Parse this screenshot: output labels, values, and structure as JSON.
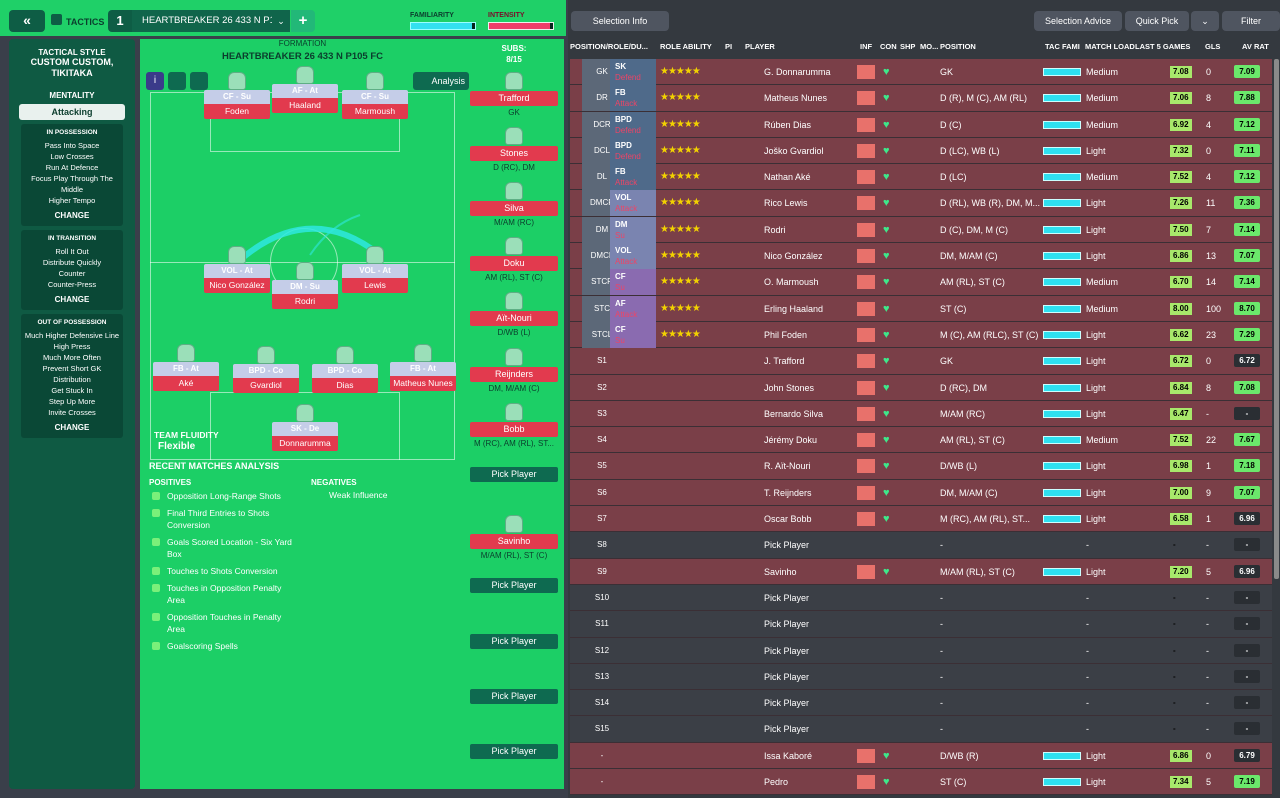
{
  "topbar": {
    "collapse": "«",
    "tactics_label": "TACTICS",
    "tactic_number": "1",
    "tactic_name": "HEARTBREAKER 26 433 N P1...",
    "dropdown": "⌄",
    "add": "+",
    "familiarity_label": "FAMILIARITY",
    "familiarity_value": 0.95,
    "intensity_label": "INTENSITY",
    "intensity_value": 0.95
  },
  "left": {
    "style_title": "TACTICAL STYLE",
    "style_name": "CUSTOM CUSTOM, TIKITAKA",
    "mentality_title": "MENTALITY",
    "mentality_value": "Attacking",
    "in_possession": {
      "title": "IN POSSESSION",
      "items": [
        "Pass Into Space",
        "Low Crosses",
        "Run At Defence",
        "Focus Play Through The Middle",
        "Higher Tempo"
      ],
      "change": "CHANGE"
    },
    "in_transition": {
      "title": "IN TRANSITION",
      "items": [
        "Roll It Out",
        "Distribute Quickly",
        "Counter",
        "Counter-Press"
      ],
      "change": "CHANGE"
    },
    "out_of_possession": {
      "title": "OUT OF POSSESSION",
      "items": [
        "Much Higher Defensive Line",
        "High Press",
        "Much More Often",
        "Prevent Short GK Distribution",
        "Get Stuck In",
        "Step Up More",
        "Invite Crosses"
      ],
      "change": "CHANGE"
    }
  },
  "pitch": {
    "formation_label": "FORMATION",
    "formation_name": "HEARTBREAKER 26 433 N P105 FC",
    "analysis": "Analysis",
    "team_fluidity_label": "TEAM FLUIDITY",
    "team_fluidity_value": "Flexible",
    "players": [
      {
        "role": "CF - Su",
        "name": "Foden"
      },
      {
        "role": "AF - At",
        "name": "Haaland"
      },
      {
        "role": "CF - Su",
        "name": "Marmoush"
      },
      {
        "role": "VOL - At",
        "name": "Nico González"
      },
      {
        "role": "DM - Su",
        "name": "Rodri"
      },
      {
        "role": "VOL - At",
        "name": "Lewis"
      },
      {
        "role": "FB - At",
        "name": "Aké"
      },
      {
        "role": "BPD - Co",
        "name": "Gvardiol"
      },
      {
        "role": "BPD - Co",
        "name": "Dias"
      },
      {
        "role": "FB - At",
        "name": "Matheus Nunes"
      },
      {
        "role": "SK - De",
        "name": "Donnarumma"
      }
    ]
  },
  "subs": {
    "title": "SUBS:",
    "count": "8/15",
    "items": [
      {
        "name": "Trafford",
        "pos": "GK"
      },
      {
        "name": "Stones",
        "pos": "D (RC), DM"
      },
      {
        "name": "Silva",
        "pos": "M/AM (RC)"
      },
      {
        "name": "Doku",
        "pos": "AM (RL), ST (C)"
      },
      {
        "name": "Aït-Nouri",
        "pos": "D/WB (L)"
      },
      {
        "name": "Reijnders",
        "pos": "DM, M/AM (C)"
      },
      {
        "name": "Bobb",
        "pos": "M (RC), AM (RL), ST..."
      },
      {
        "name": "Pick Player",
        "pos": ""
      },
      {
        "name": "Savinho",
        "pos": "M/AM (RL), ST (C)"
      },
      {
        "name": "Pick Player",
        "pos": ""
      },
      {
        "name": "Pick Player",
        "pos": ""
      },
      {
        "name": "Pick Player",
        "pos": ""
      },
      {
        "name": "Pick Player",
        "pos": ""
      }
    ]
  },
  "analysis": {
    "title": "RECENT MATCHES ANALYSIS",
    "positives_title": "POSITIVES",
    "negatives_title": "NEGATIVES",
    "positives": [
      "Opposition Long-Range Shots",
      "Final Third Entries to Shots Conversion",
      "Goals Scored Location - Six Yard Box",
      "Touches to Shots Conversion",
      "Touches in Opposition Penalty Area",
      "Opposition Touches in Penalty Area",
      "Goalscoring Spells"
    ],
    "negatives": [
      "Weak Influence"
    ]
  },
  "right": {
    "selection_info": "Selection Info",
    "selection_advice": "Selection Advice",
    "quick_pick": "Quick Pick",
    "filter": "Filter",
    "headers": [
      "POSITION/ROLE/DU...",
      "ROLE ABILITY",
      "PI",
      "PLAYER",
      "INF",
      "CON",
      "SHP",
      "MO...",
      "POSITION",
      "TAC FAMI",
      "MATCH LOAD",
      "LAST 5 GAMES",
      "GLS",
      "AV RAT"
    ],
    "rows": [
      {
        "slot": "GK",
        "role": "SK",
        "duty": "Defend",
        "stars": "★★★★★",
        "player": "G. Donnarumma",
        "position": "GK",
        "load": "Medium",
        "last": "7.08",
        "gls": "0",
        "avr": "7.09"
      },
      {
        "slot": "DR",
        "role": "FB",
        "duty": "Attack",
        "stars": "★★★★★",
        "player": "Matheus Nunes",
        "position": "D (R), M (C), AM (RL)",
        "load": "Medium",
        "last": "7.06",
        "gls": "8",
        "avr": "7.88"
      },
      {
        "slot": "DCR",
        "role": "BPD",
        "duty": "Defend",
        "stars": "★★★★★",
        "player": "Rúben Dias",
        "position": "D (C)",
        "load": "Medium",
        "last": "6.92",
        "gls": "4",
        "avr": "7.12"
      },
      {
        "slot": "DCL",
        "role": "BPD",
        "duty": "Defend",
        "stars": "★★★★★",
        "player": "Joško Gvardiol",
        "position": "D (LC), WB (L)",
        "load": "Light",
        "last": "7.32",
        "gls": "0",
        "avr": "7.11"
      },
      {
        "slot": "DL",
        "role": "FB",
        "duty": "Attack",
        "stars": "★★★★★",
        "player": "Nathan Aké",
        "position": "D (LC)",
        "load": "Medium",
        "last": "7.52",
        "gls": "4",
        "avr": "7.12"
      },
      {
        "slot": "DMCR",
        "role": "VOL",
        "duty": "Attack",
        "stars": "★★★★★",
        "player": "Rico Lewis",
        "position": "D (RL), WB (R), DM, M...",
        "load": "Light",
        "last": "7.26",
        "gls": "11",
        "avr": "7.36"
      },
      {
        "slot": "DM",
        "role": "DM",
        "duty": "Su",
        "stars": "★★★★★",
        "player": "Rodri",
        "position": "D (C), DM, M (C)",
        "load": "Light",
        "last": "7.50",
        "gls": "7",
        "avr": "7.14"
      },
      {
        "slot": "DMCL",
        "role": "VOL",
        "duty": "Attack",
        "stars": "★★★★★",
        "player": "Nico González",
        "position": "DM, M/AM (C)",
        "load": "Light",
        "last": "6.86",
        "gls": "13",
        "avr": "7.07"
      },
      {
        "slot": "STCR",
        "role": "CF",
        "duty": "Su",
        "stars": "★★★★★",
        "player": "O. Marmoush",
        "position": "AM (RL), ST (C)",
        "load": "Medium",
        "last": "6.70",
        "gls": "14",
        "avr": "7.14"
      },
      {
        "slot": "STC",
        "role": "AF",
        "duty": "Attack",
        "stars": "★★★★★",
        "player": "Erling Haaland",
        "position": "ST (C)",
        "load": "Medium",
        "last": "8.00",
        "gls": "100",
        "avr": "8.70"
      },
      {
        "slot": "STCL",
        "role": "CF",
        "duty": "Su",
        "stars": "★★★★★",
        "player": "Phil Foden",
        "position": "M (C), AM (RLC), ST (C)",
        "load": "Light",
        "last": "6.62",
        "gls": "23",
        "avr": "7.29"
      },
      {
        "slot": "S1",
        "role": "",
        "duty": "",
        "stars": "",
        "player": "J. Trafford",
        "position": "GK",
        "load": "Light",
        "last": "6.72",
        "gls": "0",
        "avr": "6.72"
      },
      {
        "slot": "S2",
        "role": "",
        "duty": "",
        "stars": "",
        "player": "John Stones",
        "position": "D (RC), DM",
        "load": "Light",
        "last": "6.84",
        "gls": "8",
        "avr": "7.08"
      },
      {
        "slot": "S3",
        "role": "",
        "duty": "",
        "stars": "",
        "player": "Bernardo Silva",
        "position": "M/AM (RC)",
        "load": "Light",
        "last": "6.47",
        "gls": "-",
        "avr": "-"
      },
      {
        "slot": "S4",
        "role": "",
        "duty": "",
        "stars": "",
        "player": "Jérémy Doku",
        "position": "AM (RL), ST (C)",
        "load": "Medium",
        "last": "7.52",
        "gls": "22",
        "avr": "7.67"
      },
      {
        "slot": "S5",
        "role": "",
        "duty": "",
        "stars": "",
        "player": "R. Aït-Nouri",
        "position": "D/WB (L)",
        "load": "Light",
        "last": "6.98",
        "gls": "1",
        "avr": "7.18"
      },
      {
        "slot": "S6",
        "role": "",
        "duty": "",
        "stars": "",
        "player": "T. Reijnders",
        "position": "DM, M/AM (C)",
        "load": "Light",
        "last": "7.00",
        "gls": "9",
        "avr": "7.07"
      },
      {
        "slot": "S7",
        "role": "",
        "duty": "",
        "stars": "",
        "player": "Oscar Bobb",
        "position": "M (RC), AM (RL), ST...",
        "load": "Light",
        "last": "6.58",
        "gls": "1",
        "avr": "6.96"
      },
      {
        "slot": "S8",
        "role": "",
        "duty": "",
        "stars": "",
        "player": "Pick Player",
        "position": "-",
        "load": "-",
        "last": "-",
        "gls": "-",
        "avr": "-"
      },
      {
        "slot": "S9",
        "role": "",
        "duty": "",
        "stars": "",
        "player": "Savinho",
        "position": "M/AM (RL), ST (C)",
        "load": "Light",
        "last": "7.20",
        "gls": "5",
        "avr": "6.96"
      },
      {
        "slot": "S10",
        "role": "",
        "duty": "",
        "stars": "",
        "player": "Pick Player",
        "position": "-",
        "load": "-",
        "last": "-",
        "gls": "-",
        "avr": "-"
      },
      {
        "slot": "S11",
        "role": "",
        "duty": "",
        "stars": "",
        "player": "Pick Player",
        "position": "-",
        "load": "-",
        "last": "-",
        "gls": "-",
        "avr": "-"
      },
      {
        "slot": "S12",
        "role": "",
        "duty": "",
        "stars": "",
        "player": "Pick Player",
        "position": "-",
        "load": "-",
        "last": "-",
        "gls": "-",
        "avr": "-"
      },
      {
        "slot": "S13",
        "role": "",
        "duty": "",
        "stars": "",
        "player": "Pick Player",
        "position": "-",
        "load": "-",
        "last": "-",
        "gls": "-",
        "avr": "-"
      },
      {
        "slot": "S14",
        "role": "",
        "duty": "",
        "stars": "",
        "player": "Pick Player",
        "position": "-",
        "load": "-",
        "last": "-",
        "gls": "-",
        "avr": "-"
      },
      {
        "slot": "S15",
        "role": "",
        "duty": "",
        "stars": "",
        "player": "Pick Player",
        "position": "-",
        "load": "-",
        "last": "-",
        "gls": "-",
        "avr": "-"
      },
      {
        "slot": "-",
        "role": "",
        "duty": "",
        "stars": "",
        "player": "Issa Kaboré",
        "position": "D/WB (R)",
        "load": "Light",
        "last": "6.86",
        "gls": "0",
        "avr": "6.79"
      },
      {
        "slot": "-",
        "role": "",
        "duty": "",
        "stars": "",
        "player": "Pedro",
        "position": "ST (C)",
        "load": "Light",
        "last": "7.34",
        "gls": "5",
        "avr": "7.19"
      }
    ]
  }
}
